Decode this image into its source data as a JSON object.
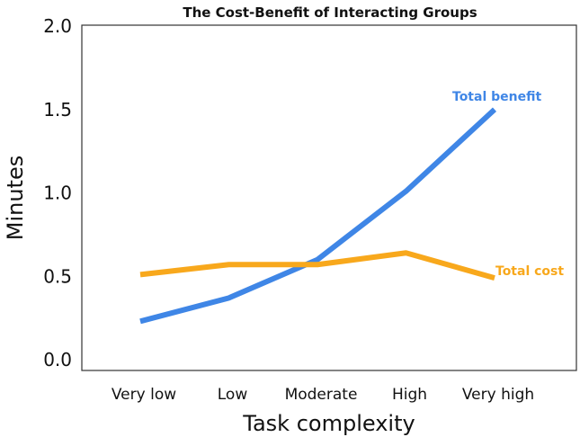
{
  "chart_data": {
    "type": "line",
    "title": "The Cost-Benefit of Interacting Groups",
    "xlabel": "Task complexity",
    "ylabel": "Minutes",
    "categories": [
      "Very low",
      "Low",
      "Moderate",
      "High",
      "Very high"
    ],
    "ylim": [
      0,
      2.0
    ],
    "yticks": [
      "0.0",
      "0.5",
      "1.0",
      "1.5",
      "2.0"
    ],
    "grid": false,
    "series": [
      {
        "name": "Total benefit",
        "color": "#3f86e6",
        "values": [
          0.23,
          0.37,
          0.6,
          1.01,
          1.5
        ]
      },
      {
        "name": "Total cost",
        "color": "#f8a81c",
        "values": [
          0.51,
          0.57,
          0.57,
          0.64,
          0.49
        ]
      }
    ]
  }
}
